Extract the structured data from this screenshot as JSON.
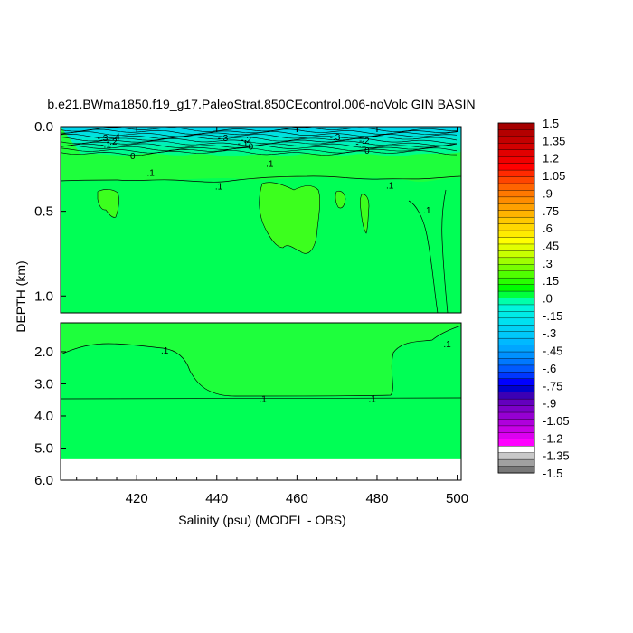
{
  "chart_data": {
    "type": "contour",
    "title": "b.e21.BWma1850.f19_g17.PaleoStrat.850CEcontrol.006-noVolc GIN BASIN",
    "xlabel": "Salinity (psu) (MODEL - OBS)",
    "ylabel": "DEPTH (km)",
    "xlim": [
      401,
      501
    ],
    "x_ticks": [
      "420",
      "440",
      "460",
      "480",
      "500"
    ],
    "x_tick_values": [
      420,
      440,
      460,
      480,
      500
    ],
    "upper_panel": {
      "ylim": [
        0,
        1.1
      ],
      "y_ticks": [
        "0.0",
        "0.5",
        "1.0"
      ],
      "y_tick_values": [
        0.0,
        0.5,
        1.0
      ]
    },
    "lower_panel": {
      "ylim": [
        1.1,
        6.0
      ],
      "y_ticks": [
        "2.0",
        "3.0",
        "4.0",
        "5.0",
        "6.0"
      ],
      "y_tick_values": [
        2.0,
        3.0,
        4.0,
        5.0,
        6.0
      ],
      "data_bottom_depth": 5.35
    },
    "contour_labels": [
      {
        "text": "-.3",
        "x": 411.5,
        "depth": 0.065
      },
      {
        "text": "-.4",
        "x": 414.5,
        "depth": 0.055
      },
      {
        "text": "-.2",
        "x": 413.8,
        "depth": 0.085
      },
      {
        "text": "-.1",
        "x": 412.3,
        "depth": 0.105
      },
      {
        "text": "0",
        "x": 419.0,
        "depth": 0.17
      },
      {
        "text": "-.3",
        "x": 441.5,
        "depth": 0.065
      },
      {
        "text": "-.2",
        "x": 447.3,
        "depth": 0.075
      },
      {
        "text": "-.1",
        "x": 446.5,
        "depth": 0.095
      },
      {
        "text": "0",
        "x": 448.5,
        "depth": 0.115
      },
      {
        "text": "-.3",
        "x": 469.5,
        "depth": 0.06
      },
      {
        "text": "-.2",
        "x": 476.8,
        "depth": 0.08
      },
      {
        "text": "-.1",
        "x": 476.0,
        "depth": 0.1
      },
      {
        "text": "0",
        "x": 477.5,
        "depth": 0.14
      },
      {
        "text": ".1",
        "x": 423.5,
        "depth": 0.27
      },
      {
        "text": ".1",
        "x": 453.2,
        "depth": 0.215
      },
      {
        "text": ".1",
        "x": 440.5,
        "depth": 0.35
      },
      {
        "text": ".1",
        "x": 483.2,
        "depth": 0.345
      },
      {
        "text": ".1",
        "x": 492.5,
        "depth": 0.49
      },
      {
        "text": ".1",
        "x": 427.0,
        "depth": 1.95
      },
      {
        "text": ".1",
        "x": 451.5,
        "depth": 3.45
      },
      {
        "text": ".1",
        "x": 478.8,
        "depth": 3.45
      },
      {
        "text": ".1",
        "x": 497.5,
        "depth": 1.75
      }
    ],
    "colorbar": {
      "levels": [
        "1.5",
        "1.35",
        "1.2",
        "1.05",
        ".9",
        ".75",
        ".6",
        ".45",
        ".3",
        ".15",
        ".0",
        "-.15",
        "-.3",
        "-.45",
        "-.6",
        "-.75",
        "-.9",
        "-1.05",
        "-1.2",
        "-1.35",
        "-1.5"
      ],
      "colors_top_to_bottom": [
        "#a50000",
        "#b40000",
        "#c30000",
        "#d20000",
        "#e10000",
        "#f00000",
        "#ff0000",
        "#ff2a00",
        "#ff4500",
        "#ff6400",
        "#ff7800",
        "#ff8c00",
        "#ffa000",
        "#ffb400",
        "#ffc800",
        "#ffd700",
        "#ffeb00",
        "#ffff00",
        "#e1ff00",
        "#c8ff00",
        "#a0ff00",
        "#78ff00",
        "#50ff00",
        "#28ff00",
        "#00ff00",
        "#00ff3c",
        "#00ffaa",
        "#00f5dc",
        "#00ebe6",
        "#00e1f0",
        "#00d2f5",
        "#00c8fa",
        "#00b9ff",
        "#00a5ff",
        "#0091ff",
        "#0078ff",
        "#005aff",
        "#0037ff",
        "#0000ff",
        "#0000cd",
        "#3c00b4",
        "#6400be",
        "#7d00c8",
        "#9600d2",
        "#af00dc",
        "#c800e6",
        "#dc00f0",
        "#ff00ff",
        "#ffffff",
        "#c8c8c8",
        "#a0a0a0",
        "#787878"
      ]
    },
    "field_colors": {
      "main": "#00ff55",
      "deep": "#00ff55",
      "surface_layer": "#1eff3c",
      "warm_patch": "#3cff1e",
      "cold_surface": [
        "#00d2f0",
        "#00e6dc",
        "#00f5aa",
        "#00ff78"
      ]
    }
  }
}
